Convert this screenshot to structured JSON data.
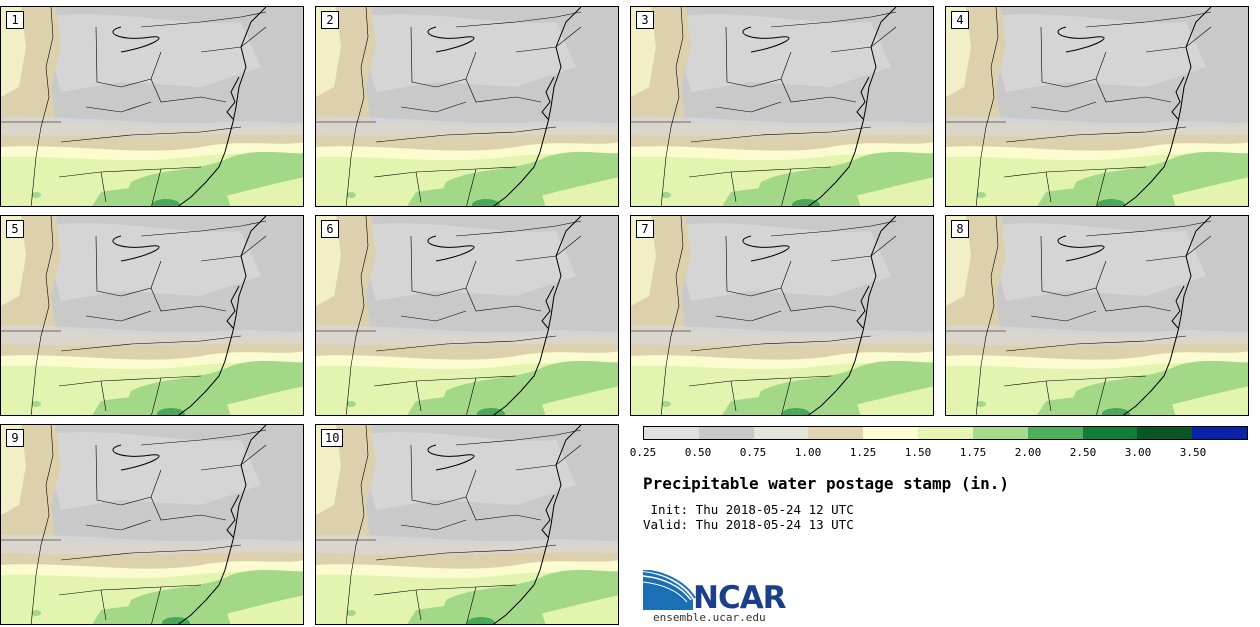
{
  "panels": [
    {
      "label": "1"
    },
    {
      "label": "2"
    },
    {
      "label": "3"
    },
    {
      "label": "4"
    },
    {
      "label": "5"
    },
    {
      "label": "6"
    },
    {
      "label": "7"
    },
    {
      "label": "8"
    },
    {
      "label": "9"
    },
    {
      "label": "10"
    }
  ],
  "colorbar": {
    "levels": [
      "0.25",
      "0.50",
      "0.75",
      "1.00",
      "1.25",
      "1.50",
      "1.75",
      "2.00",
      "2.50",
      "3.00",
      "3.50"
    ],
    "colors": [
      "#e0e0e0",
      "#c8c8c8",
      "#e4e4d8",
      "#e1d4b1",
      "#fcfcce",
      "#e6f5b4",
      "#a7db8c",
      "#4eae5b",
      "#137d38",
      "#0b5527",
      "#0a22a8"
    ]
  },
  "map_colors": {
    "gray_light": "#d8d8d8",
    "gray": "#c9c9c9",
    "tan": "#ddd1ad",
    "cream": "#fbfbd0",
    "green_light": "#e3f3b0",
    "green": "#a3d888",
    "green_dark": "#4aa85a"
  },
  "title": "Precipitable water postage stamp (in.)",
  "init": " Init: Thu 2018-05-24 12 UTC",
  "valid": "Valid: Thu 2018-05-24 13 UTC",
  "logo": {
    "text": "NCAR",
    "site": "ensemble.ucar.edu"
  }
}
